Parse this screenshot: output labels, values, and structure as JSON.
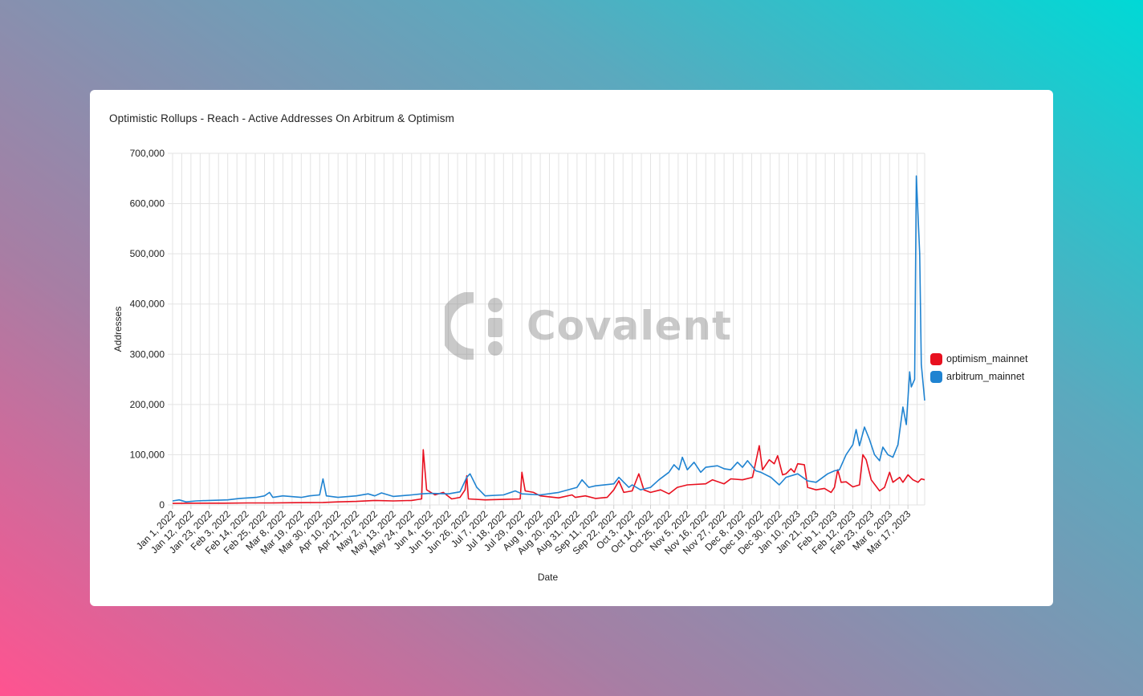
{
  "watermark": {
    "text": "Covalent",
    "icon": "covalent-logo-icon"
  },
  "colors": {
    "optimism": "#e8101f",
    "arbitrum": "#1f83d1",
    "grid": "#e3e3e3"
  },
  "chart_data": {
    "type": "line",
    "title": "Optimistic Rollups - Reach - Active Addresses On Arbitrum & Optimism",
    "xlabel": "Date",
    "ylabel": "Addresses",
    "ylim": [
      0,
      700000
    ],
    "y_ticks": [
      0,
      100000,
      200000,
      300000,
      400000,
      500000,
      600000,
      700000
    ],
    "y_tick_labels": [
      "0",
      "100,000",
      "200,000",
      "300,000",
      "400,000",
      "500,000",
      "600,000",
      "700,000"
    ],
    "x_range": [
      "2022-01-01",
      "2023-03-27"
    ],
    "x_tick_labels": [
      "Jan 1, 2022",
      "Jan 12, 2022",
      "Jan 23, 2022",
      "Feb 3, 2022",
      "Feb 14, 2022",
      "Feb 25, 2022",
      "Mar 8, 2022",
      "Mar 19, 2022",
      "Mar 30, 2022",
      "Apr 10, 2022",
      "Apr 21, 2022",
      "May 2, 2022",
      "May 13, 2022",
      "May 24, 2022",
      "Jun 4, 2022",
      "Jun 15, 2022",
      "Jun 26, 2022",
      "Jul 7, 2022",
      "Jul 18, 2022",
      "Jul 29, 2022",
      "Aug 9, 2022",
      "Aug 20, 2022",
      "Aug 31, 2022",
      "Sep 11, 2022",
      "Sep 22, 2022",
      "Oct 3, 2022",
      "Oct 14, 2022",
      "Oct 25, 2022",
      "Nov 5, 2022",
      "Nov 16, 2022",
      "Nov 27, 2022",
      "Dec 8, 2022",
      "Dec 19, 2022",
      "Dec 30, 2022",
      "Jan 10, 2023",
      "Jan 21, 2023",
      "Feb 1, 2023",
      "Feb 12, 2023",
      "Feb 23, 2023",
      "Mar 6, 2023",
      "Mar 17, 2023"
    ],
    "grid": true,
    "legend_position": "right",
    "series": [
      {
        "name": "optimism_mainnet",
        "color": "#e8101f",
        "points": [
          [
            "2022-01-01",
            3000
          ],
          [
            "2022-01-15",
            3500
          ],
          [
            "2022-02-01",
            3500
          ],
          [
            "2022-02-15",
            4000
          ],
          [
            "2022-03-01",
            4000
          ],
          [
            "2022-03-15",
            4500
          ],
          [
            "2022-04-01",
            5000
          ],
          [
            "2022-04-10",
            6000
          ],
          [
            "2022-04-21",
            7000
          ],
          [
            "2022-05-02",
            9000
          ],
          [
            "2022-05-13",
            8000
          ],
          [
            "2022-05-24",
            9000
          ],
          [
            "2022-05-30",
            12000
          ],
          [
            "2022-05-31",
            110000
          ],
          [
            "2022-06-02",
            30000
          ],
          [
            "2022-06-07",
            20000
          ],
          [
            "2022-06-12",
            25000
          ],
          [
            "2022-06-17",
            12000
          ],
          [
            "2022-06-22",
            15000
          ],
          [
            "2022-06-25",
            30000
          ],
          [
            "2022-06-26",
            58000
          ],
          [
            "2022-06-27",
            12000
          ],
          [
            "2022-07-07",
            10000
          ],
          [
            "2022-07-18",
            11000
          ],
          [
            "2022-07-28",
            12000
          ],
          [
            "2022-07-29",
            65000
          ],
          [
            "2022-07-31",
            28000
          ],
          [
            "2022-08-05",
            25000
          ],
          [
            "2022-08-09",
            18000
          ],
          [
            "2022-08-20",
            14000
          ],
          [
            "2022-08-28",
            20000
          ],
          [
            "2022-08-30",
            15000
          ],
          [
            "2022-09-05",
            18000
          ],
          [
            "2022-09-11",
            13000
          ],
          [
            "2022-09-18",
            15000
          ],
          [
            "2022-09-22",
            30000
          ],
          [
            "2022-09-25",
            48000
          ],
          [
            "2022-09-28",
            25000
          ],
          [
            "2022-10-03",
            28000
          ],
          [
            "2022-10-07",
            62000
          ],
          [
            "2022-10-10",
            30000
          ],
          [
            "2022-10-14",
            25000
          ],
          [
            "2022-10-20",
            30000
          ],
          [
            "2022-10-25",
            22000
          ],
          [
            "2022-10-30",
            35000
          ],
          [
            "2022-11-05",
            40000
          ],
          [
            "2022-11-16",
            42000
          ],
          [
            "2022-11-20",
            50000
          ],
          [
            "2022-11-27",
            42000
          ],
          [
            "2022-12-01",
            52000
          ],
          [
            "2022-12-08",
            50000
          ],
          [
            "2022-12-14",
            55000
          ],
          [
            "2022-12-18",
            118000
          ],
          [
            "2022-12-20",
            70000
          ],
          [
            "2022-12-24",
            90000
          ],
          [
            "2022-12-27",
            82000
          ],
          [
            "2022-12-29",
            98000
          ],
          [
            "2023-01-01",
            60000
          ],
          [
            "2023-01-03",
            62000
          ],
          [
            "2023-01-06",
            72000
          ],
          [
            "2023-01-08",
            65000
          ],
          [
            "2023-01-10",
            82000
          ],
          [
            "2023-01-14",
            80000
          ],
          [
            "2023-01-16",
            35000
          ],
          [
            "2023-01-21",
            30000
          ],
          [
            "2023-01-26",
            33000
          ],
          [
            "2023-01-30",
            25000
          ],
          [
            "2023-02-01",
            35000
          ],
          [
            "2023-02-03",
            70000
          ],
          [
            "2023-02-05",
            45000
          ],
          [
            "2023-02-08",
            46000
          ],
          [
            "2023-02-12",
            36000
          ],
          [
            "2023-02-16",
            40000
          ],
          [
            "2023-02-18",
            100000
          ],
          [
            "2023-02-20",
            90000
          ],
          [
            "2023-02-23",
            50000
          ],
          [
            "2023-02-28",
            28000
          ],
          [
            "2023-03-03",
            35000
          ],
          [
            "2023-03-06",
            65000
          ],
          [
            "2023-03-08",
            45000
          ],
          [
            "2023-03-12",
            55000
          ],
          [
            "2023-03-14",
            45000
          ],
          [
            "2023-03-17",
            60000
          ],
          [
            "2023-03-20",
            50000
          ],
          [
            "2023-03-23",
            45000
          ],
          [
            "2023-03-25",
            52000
          ],
          [
            "2023-03-27",
            50000
          ]
        ]
      },
      {
        "name": "arbitrum_mainnet",
        "color": "#1f83d1",
        "points": [
          [
            "2022-01-01",
            8000
          ],
          [
            "2022-01-05",
            10000
          ],
          [
            "2022-01-09",
            6000
          ],
          [
            "2022-01-15",
            8000
          ],
          [
            "2022-01-23",
            9000
          ],
          [
            "2022-02-03",
            10000
          ],
          [
            "2022-02-10",
            13000
          ],
          [
            "2022-02-20",
            15000
          ],
          [
            "2022-02-25",
            18000
          ],
          [
            "2022-02-28",
            25000
          ],
          [
            "2022-03-02",
            15000
          ],
          [
            "2022-03-08",
            18000
          ],
          [
            "2022-03-19",
            15000
          ],
          [
            "2022-03-24",
            18000
          ],
          [
            "2022-03-30",
            20000
          ],
          [
            "2022-04-01",
            52000
          ],
          [
            "2022-04-03",
            18000
          ],
          [
            "2022-04-10",
            15000
          ],
          [
            "2022-04-21",
            18000
          ],
          [
            "2022-04-28",
            22000
          ],
          [
            "2022-05-02",
            18000
          ],
          [
            "2022-05-06",
            24000
          ],
          [
            "2022-05-13",
            17000
          ],
          [
            "2022-05-24",
            20000
          ],
          [
            "2022-05-30",
            22000
          ],
          [
            "2022-06-04",
            23000
          ],
          [
            "2022-06-15",
            22000
          ],
          [
            "2022-06-22",
            26000
          ],
          [
            "2022-06-26",
            55000
          ],
          [
            "2022-06-28",
            62000
          ],
          [
            "2022-07-02",
            35000
          ],
          [
            "2022-07-07",
            18000
          ],
          [
            "2022-07-18",
            20000
          ],
          [
            "2022-07-25",
            28000
          ],
          [
            "2022-07-29",
            22000
          ],
          [
            "2022-08-09",
            20000
          ],
          [
            "2022-08-20",
            25000
          ],
          [
            "2022-08-31",
            35000
          ],
          [
            "2022-09-03",
            50000
          ],
          [
            "2022-09-07",
            35000
          ],
          [
            "2022-09-11",
            38000
          ],
          [
            "2022-09-22",
            42000
          ],
          [
            "2022-09-25",
            55000
          ],
          [
            "2022-10-01",
            35000
          ],
          [
            "2022-10-03",
            40000
          ],
          [
            "2022-10-08",
            30000
          ],
          [
            "2022-10-14",
            35000
          ],
          [
            "2022-10-19",
            50000
          ],
          [
            "2022-10-25",
            65000
          ],
          [
            "2022-10-28",
            80000
          ],
          [
            "2022-10-31",
            70000
          ],
          [
            "2022-11-02",
            95000
          ],
          [
            "2022-11-05",
            70000
          ],
          [
            "2022-11-09",
            85000
          ],
          [
            "2022-11-13",
            65000
          ],
          [
            "2022-11-16",
            75000
          ],
          [
            "2022-11-23",
            78000
          ],
          [
            "2022-11-27",
            72000
          ],
          [
            "2022-12-01",
            70000
          ],
          [
            "2022-12-05",
            85000
          ],
          [
            "2022-12-08",
            75000
          ],
          [
            "2022-12-11",
            88000
          ],
          [
            "2022-12-16",
            68000
          ],
          [
            "2022-12-19",
            65000
          ],
          [
            "2022-12-25",
            55000
          ],
          [
            "2022-12-30",
            40000
          ],
          [
            "2023-01-03",
            55000
          ],
          [
            "2023-01-10",
            62000
          ],
          [
            "2023-01-16",
            48000
          ],
          [
            "2023-01-21",
            45000
          ],
          [
            "2023-01-28",
            62000
          ],
          [
            "2023-02-01",
            68000
          ],
          [
            "2023-02-04",
            70000
          ],
          [
            "2023-02-08",
            100000
          ],
          [
            "2023-02-12",
            120000
          ],
          [
            "2023-02-14",
            150000
          ],
          [
            "2023-02-16",
            118000
          ],
          [
            "2023-02-19",
            155000
          ],
          [
            "2023-02-22",
            130000
          ],
          [
            "2023-02-25",
            100000
          ],
          [
            "2023-02-28",
            88000
          ],
          [
            "2023-03-02",
            115000
          ],
          [
            "2023-03-05",
            100000
          ],
          [
            "2023-03-08",
            95000
          ],
          [
            "2023-03-11",
            120000
          ],
          [
            "2023-03-14",
            195000
          ],
          [
            "2023-03-16",
            160000
          ],
          [
            "2023-03-18",
            265000
          ],
          [
            "2023-03-19",
            235000
          ],
          [
            "2023-03-21",
            250000
          ],
          [
            "2023-03-22",
            655000
          ],
          [
            "2023-03-24",
            500000
          ],
          [
            "2023-03-25",
            280000
          ],
          [
            "2023-03-27",
            208000
          ]
        ]
      }
    ]
  }
}
